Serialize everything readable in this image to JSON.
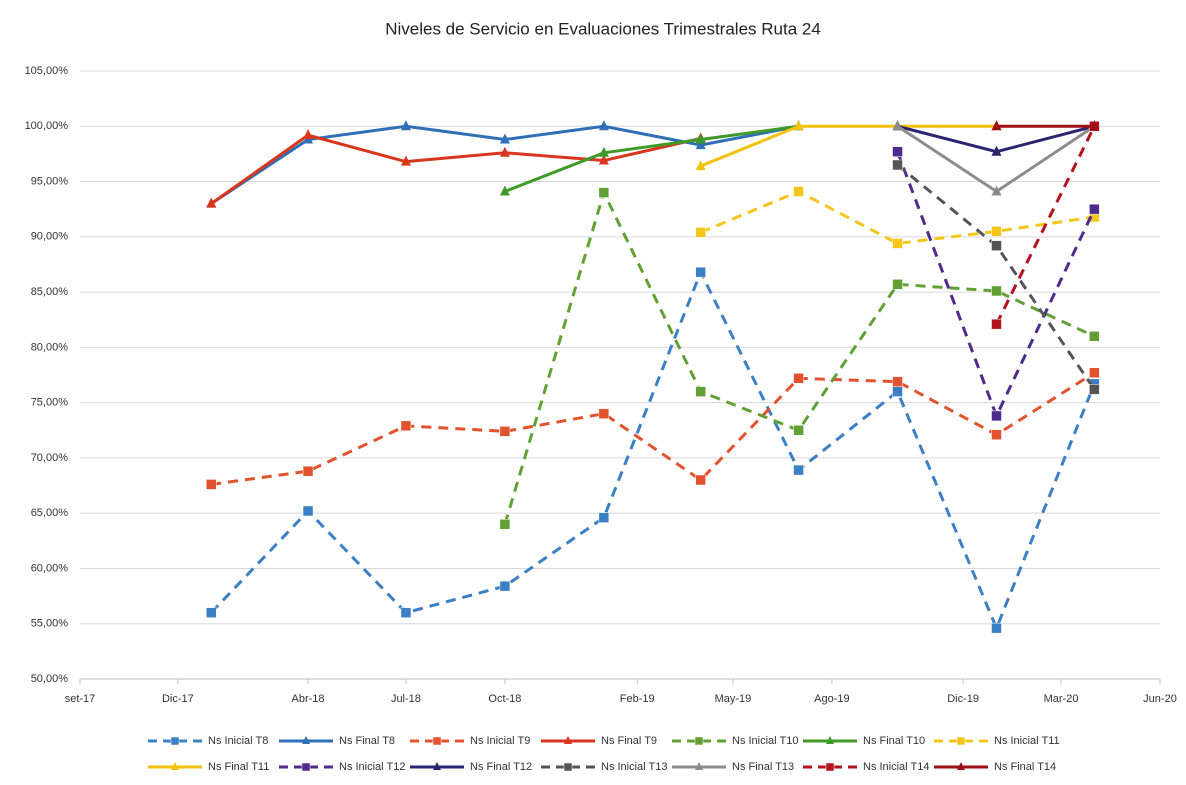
{
  "chart_data": {
    "type": "line",
    "title": "Niveles de Servicio en Evaluaciones Trimestrales Ruta 24",
    "x": [
      "2018-01",
      "2018-04",
      "2018-07",
      "2018-10",
      "2019-01",
      "2019-04",
      "2019-07",
      "2019-10",
      "2020-01",
      "2020-04"
    ],
    "xlim": [
      "2017-09",
      "2020-06"
    ],
    "xticks": [
      {
        "value": "2017-09",
        "label": "set-17"
      },
      {
        "value": "2017-12",
        "label": "Dic-17"
      },
      {
        "value": "2018-04",
        "label": "Abr-18"
      },
      {
        "value": "2018-07",
        "label": "Jul-18"
      },
      {
        "value": "2018-10",
        "label": "Oct-18"
      },
      {
        "value": "2019-02",
        "label": "Feb-19"
      },
      {
        "value": "2019-05",
        "label": "May-19"
      },
      {
        "value": "2019-08",
        "label": "Ago-19"
      },
      {
        "value": "2019-12",
        "label": "Dic-19"
      },
      {
        "value": "2020-03",
        "label": "Mar-20"
      },
      {
        "value": "2020-06",
        "label": "Jun-20"
      }
    ],
    "ylim": [
      50,
      105
    ],
    "yticks": [
      {
        "value": 50,
        "label": "50,00%"
      },
      {
        "value": 55,
        "label": "55,00%"
      },
      {
        "value": 60,
        "label": "60,00%"
      },
      {
        "value": 65,
        "label": "65,00%"
      },
      {
        "value": 70,
        "label": "70,00%"
      },
      {
        "value": 75,
        "label": "75,00%"
      },
      {
        "value": 80,
        "label": "80,00%"
      },
      {
        "value": 85,
        "label": "85,00%"
      },
      {
        "value": 90,
        "label": "90,00%"
      },
      {
        "value": 95,
        "label": "95,00%"
      },
      {
        "value": 100,
        "label": "100,00%"
      },
      {
        "value": 105,
        "label": "105,00%"
      }
    ],
    "grid": true,
    "legend": "bottom",
    "series": [
      {
        "name": "Ns Inicial T8",
        "color": "#3b7fc4",
        "dash": true,
        "marker": "square",
        "values": [
          56.0,
          65.2,
          56.0,
          58.4,
          64.6,
          86.8,
          68.9,
          76.0,
          54.6,
          76.7
        ]
      },
      {
        "name": "Ns Final T8",
        "color": "#2f6fb8",
        "dash": false,
        "marker": "triangle",
        "values": [
          93.0,
          98.8,
          100,
          98.8,
          100,
          98.3,
          100,
          null,
          null,
          null
        ]
      },
      {
        "name": "Ns Inicial T9",
        "color": "#e2522f",
        "dash": true,
        "marker": "square",
        "values": [
          67.6,
          68.8,
          72.9,
          72.4,
          74.0,
          68.0,
          77.2,
          76.9,
          72.1,
          77.7
        ]
      },
      {
        "name": "Ns Final T9",
        "color": "#d9361e",
        "dash": false,
        "marker": "triangle",
        "values": [
          93.0,
          99.2,
          96.8,
          97.6,
          96.9,
          98.9,
          null,
          null,
          null,
          null
        ]
      },
      {
        "name": "Ns Inicial T10",
        "color": "#62a035",
        "dash": true,
        "marker": "square",
        "values": [
          null,
          null,
          null,
          64.0,
          94.0,
          76.0,
          72.5,
          85.7,
          85.1,
          81.0
        ]
      },
      {
        "name": "Ns Final T10",
        "color": "#3f9a2a",
        "dash": false,
        "marker": "triangle",
        "values": [
          null,
          null,
          null,
          94.1,
          97.6,
          98.8,
          100,
          null,
          null,
          null
        ]
      },
      {
        "name": "Ns Inicial T11",
        "color": "#f4c61c",
        "dash": true,
        "marker": "square",
        "values": [
          null,
          null,
          null,
          null,
          null,
          90.4,
          94.1,
          89.4,
          90.5,
          91.8
        ]
      },
      {
        "name": "Ns Final T11",
        "color": "#f2c20f",
        "dash": false,
        "marker": "triangle",
        "values": [
          null,
          null,
          null,
          null,
          null,
          96.4,
          100,
          100,
          100,
          null
        ]
      },
      {
        "name": "Ns Inicial T12",
        "color": "#4e2b8c",
        "dash": true,
        "marker": "square",
        "values": [
          null,
          null,
          null,
          null,
          null,
          null,
          null,
          97.7,
          73.8,
          92.5
        ]
      },
      {
        "name": "Ns Final T12",
        "color": "#2b2470",
        "dash": false,
        "marker": "triangle",
        "values": [
          null,
          null,
          null,
          null,
          null,
          null,
          null,
          100,
          97.7,
          100
        ]
      },
      {
        "name": "Ns Inicial T13",
        "color": "#555555",
        "dash": true,
        "marker": "square",
        "values": [
          null,
          null,
          null,
          null,
          null,
          null,
          null,
          96.5,
          89.2,
          76.2
        ]
      },
      {
        "name": "Ns Final T13",
        "color": "#8c8c8c",
        "dash": false,
        "marker": "triangle",
        "values": [
          null,
          null,
          null,
          null,
          null,
          null,
          null,
          100,
          94.1,
          100
        ]
      },
      {
        "name": "Ns Inicial T14",
        "color": "#b3121f",
        "dash": true,
        "marker": "square",
        "values": [
          null,
          null,
          null,
          null,
          null,
          null,
          null,
          null,
          82.1,
          100
        ]
      },
      {
        "name": "Ns Final T14",
        "color": "#9e0f16",
        "dash": false,
        "marker": "triangle",
        "values": [
          null,
          null,
          null,
          null,
          null,
          null,
          null,
          null,
          100,
          100
        ]
      }
    ]
  }
}
